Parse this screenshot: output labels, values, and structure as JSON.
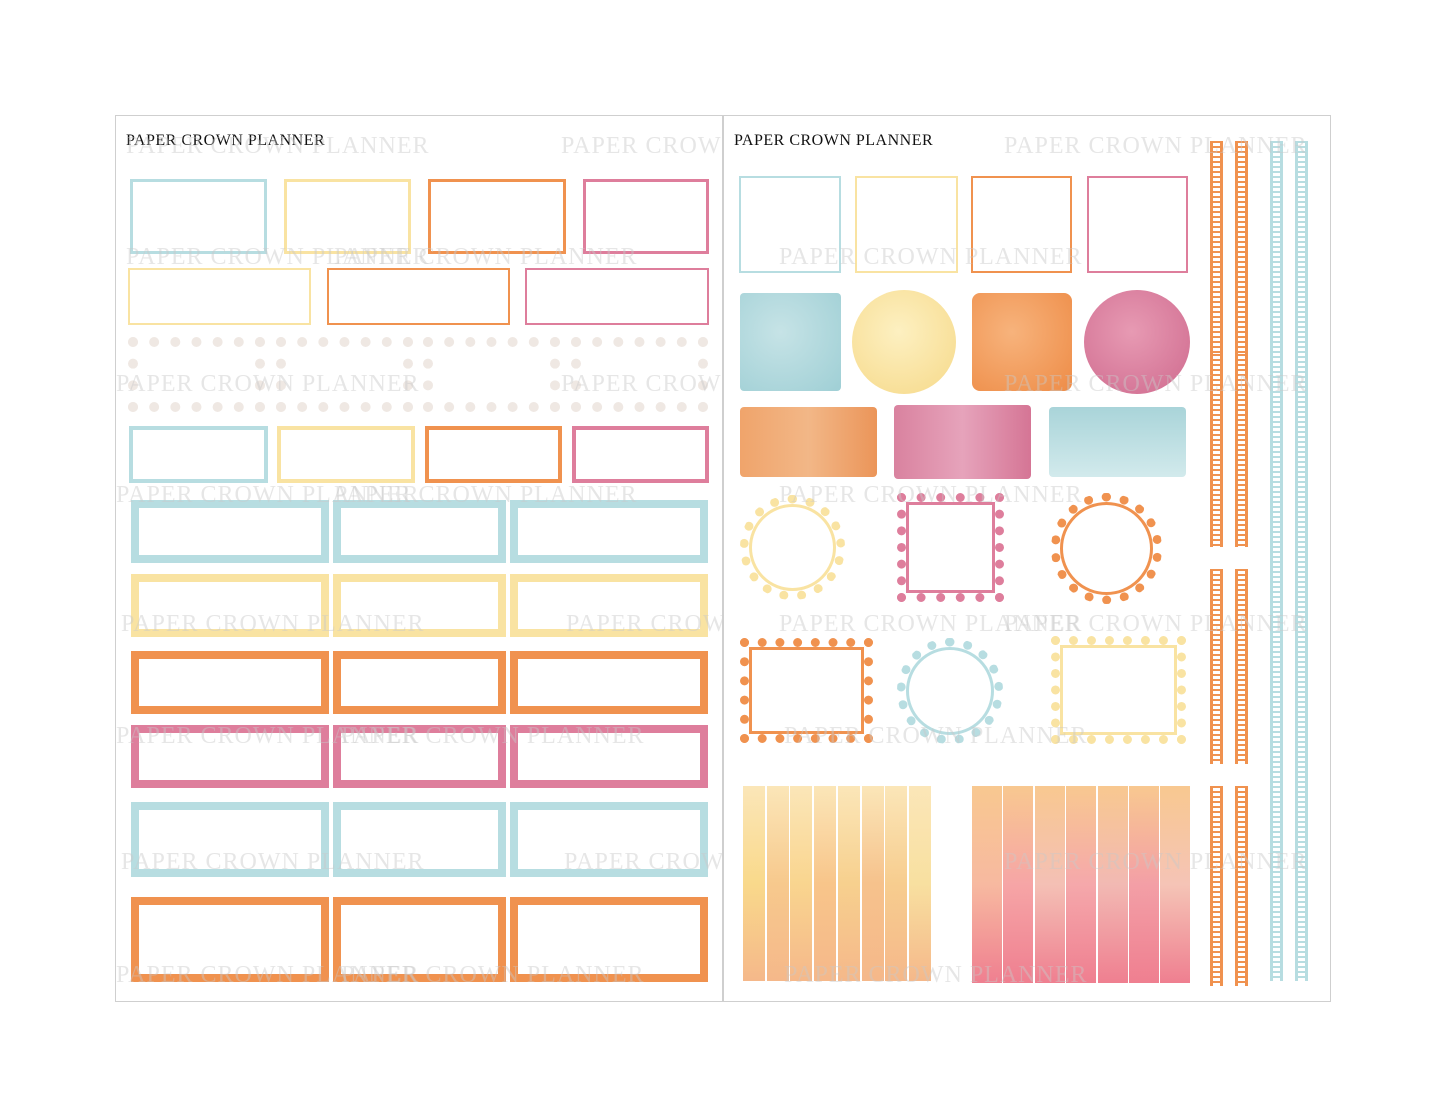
{
  "brand_text": "PAPER CROWN PLANNER",
  "sheets": [
    {
      "id": "left",
      "header": "PAPER CROWN PLANNER"
    },
    {
      "id": "right",
      "header": "PAPER CROWN PLANNER"
    }
  ],
  "watermark_text": "PAPER CROWN PLANNER",
  "colors": {
    "blue": "#b7dde1",
    "yellow": "#f9e3a2",
    "orange": "#f0924f",
    "pink": "#de7e9c",
    "cream": "#efe8e3"
  }
}
